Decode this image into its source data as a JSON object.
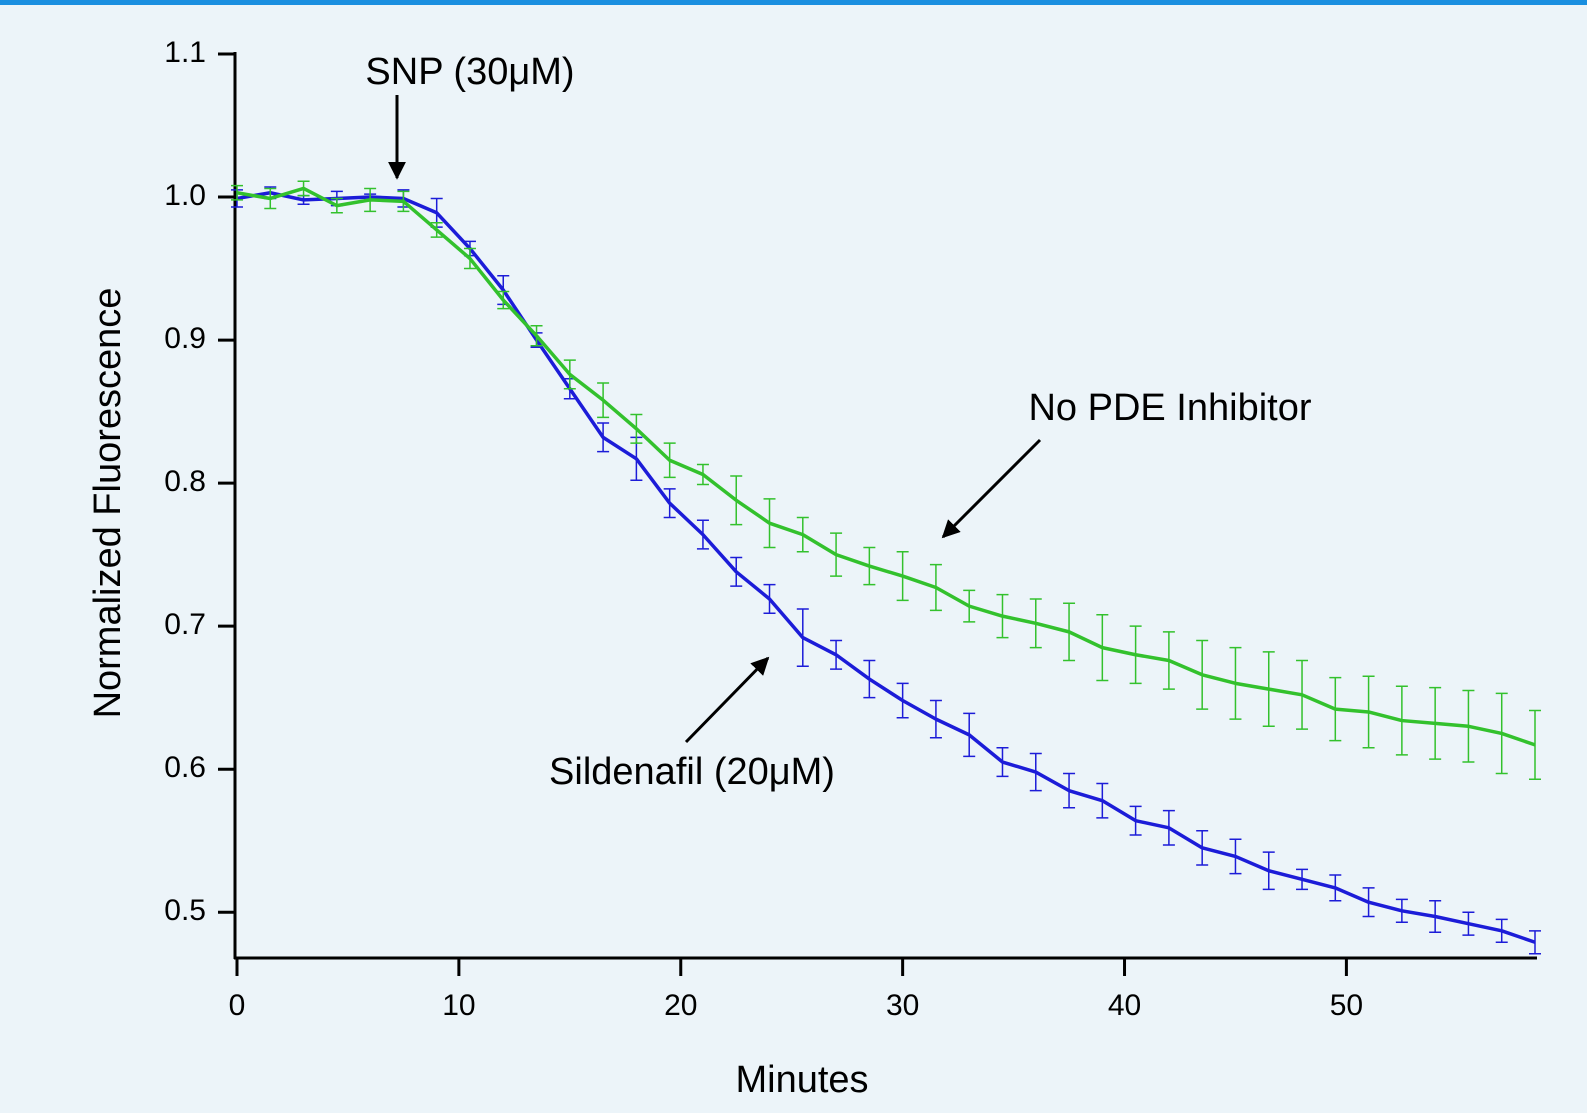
{
  "chart_data": {
    "type": "line",
    "x_label": "Minutes",
    "y_label": "Normalized Fluorescence",
    "x": [
      0,
      1.5,
      3,
      4.5,
      6,
      7.5,
      9,
      10.5,
      12,
      13.5,
      15,
      16.5,
      18,
      19.5,
      21,
      22.5,
      24,
      25.5,
      27,
      28.5,
      30,
      31.5,
      33,
      34.5,
      36,
      37.5,
      39,
      40.5,
      42,
      43.5,
      45,
      46.5,
      48,
      49.5,
      51,
      52.5,
      54,
      55.5,
      57,
      58.5
    ],
    "series": [
      {
        "name": "Sildenafil (20μM)",
        "color": "#1c1cd8",
        "values": [
          0.999,
          1.003,
          0.998,
          0.999,
          1.0,
          0.999,
          0.989,
          0.964,
          0.935,
          0.9,
          0.866,
          0.832,
          0.817,
          0.786,
          0.764,
          0.738,
          0.719,
          0.692,
          0.68,
          0.663,
          0.648,
          0.635,
          0.624,
          0.605,
          0.598,
          0.585,
          0.578,
          0.564,
          0.559,
          0.545,
          0.539,
          0.529,
          0.523,
          0.517,
          0.507,
          0.501,
          0.497,
          0.492,
          0.487,
          0.479
        ],
        "errors": [
          0.006,
          0.004,
          0.003,
          0.005,
          0.002,
          0.006,
          0.01,
          0.005,
          0.01,
          0.005,
          0.007,
          0.01,
          0.015,
          0.01,
          0.01,
          0.01,
          0.01,
          0.02,
          0.01,
          0.013,
          0.012,
          0.013,
          0.015,
          0.01,
          0.013,
          0.012,
          0.012,
          0.01,
          0.012,
          0.012,
          0.012,
          0.013,
          0.007,
          0.009,
          0.01,
          0.008,
          0.011,
          0.008,
          0.008,
          0.008
        ]
      },
      {
        "name": "No PDE Inhibitor",
        "color": "#33c12d",
        "values": [
          1.003,
          0.999,
          1.006,
          0.994,
          0.998,
          0.997,
          0.977,
          0.957,
          0.928,
          0.903,
          0.876,
          0.858,
          0.838,
          0.816,
          0.806,
          0.788,
          0.772,
          0.764,
          0.75,
          0.742,
          0.735,
          0.727,
          0.714,
          0.707,
          0.702,
          0.696,
          0.685,
          0.68,
          0.676,
          0.666,
          0.66,
          0.656,
          0.652,
          0.642,
          0.64,
          0.634,
          0.632,
          0.63,
          0.625,
          0.617
        ],
        "errors": [
          0.005,
          0.007,
          0.005,
          0.005,
          0.008,
          0.007,
          0.005,
          0.007,
          0.006,
          0.007,
          0.01,
          0.012,
          0.01,
          0.012,
          0.007,
          0.017,
          0.017,
          0.012,
          0.015,
          0.013,
          0.017,
          0.016,
          0.011,
          0.015,
          0.017,
          0.02,
          0.023,
          0.02,
          0.02,
          0.024,
          0.025,
          0.026,
          0.024,
          0.022,
          0.025,
          0.024,
          0.025,
          0.025,
          0.028,
          0.024
        ]
      }
    ],
    "annotations": [
      "SNP (30μM)",
      "No PDE Inhibitor",
      "Sildenafil (20μM)"
    ],
    "xlim": [
      0,
      58.5
    ],
    "ylim": [
      0.468,
      1.1
    ],
    "xticks": [
      0,
      10,
      20,
      30,
      40,
      50
    ],
    "yticks": [
      0.5,
      0.6,
      0.7,
      0.8,
      0.9,
      {
        "value": 1,
        "label": "1.0"
      },
      1.1
    ],
    "grid": false
  }
}
